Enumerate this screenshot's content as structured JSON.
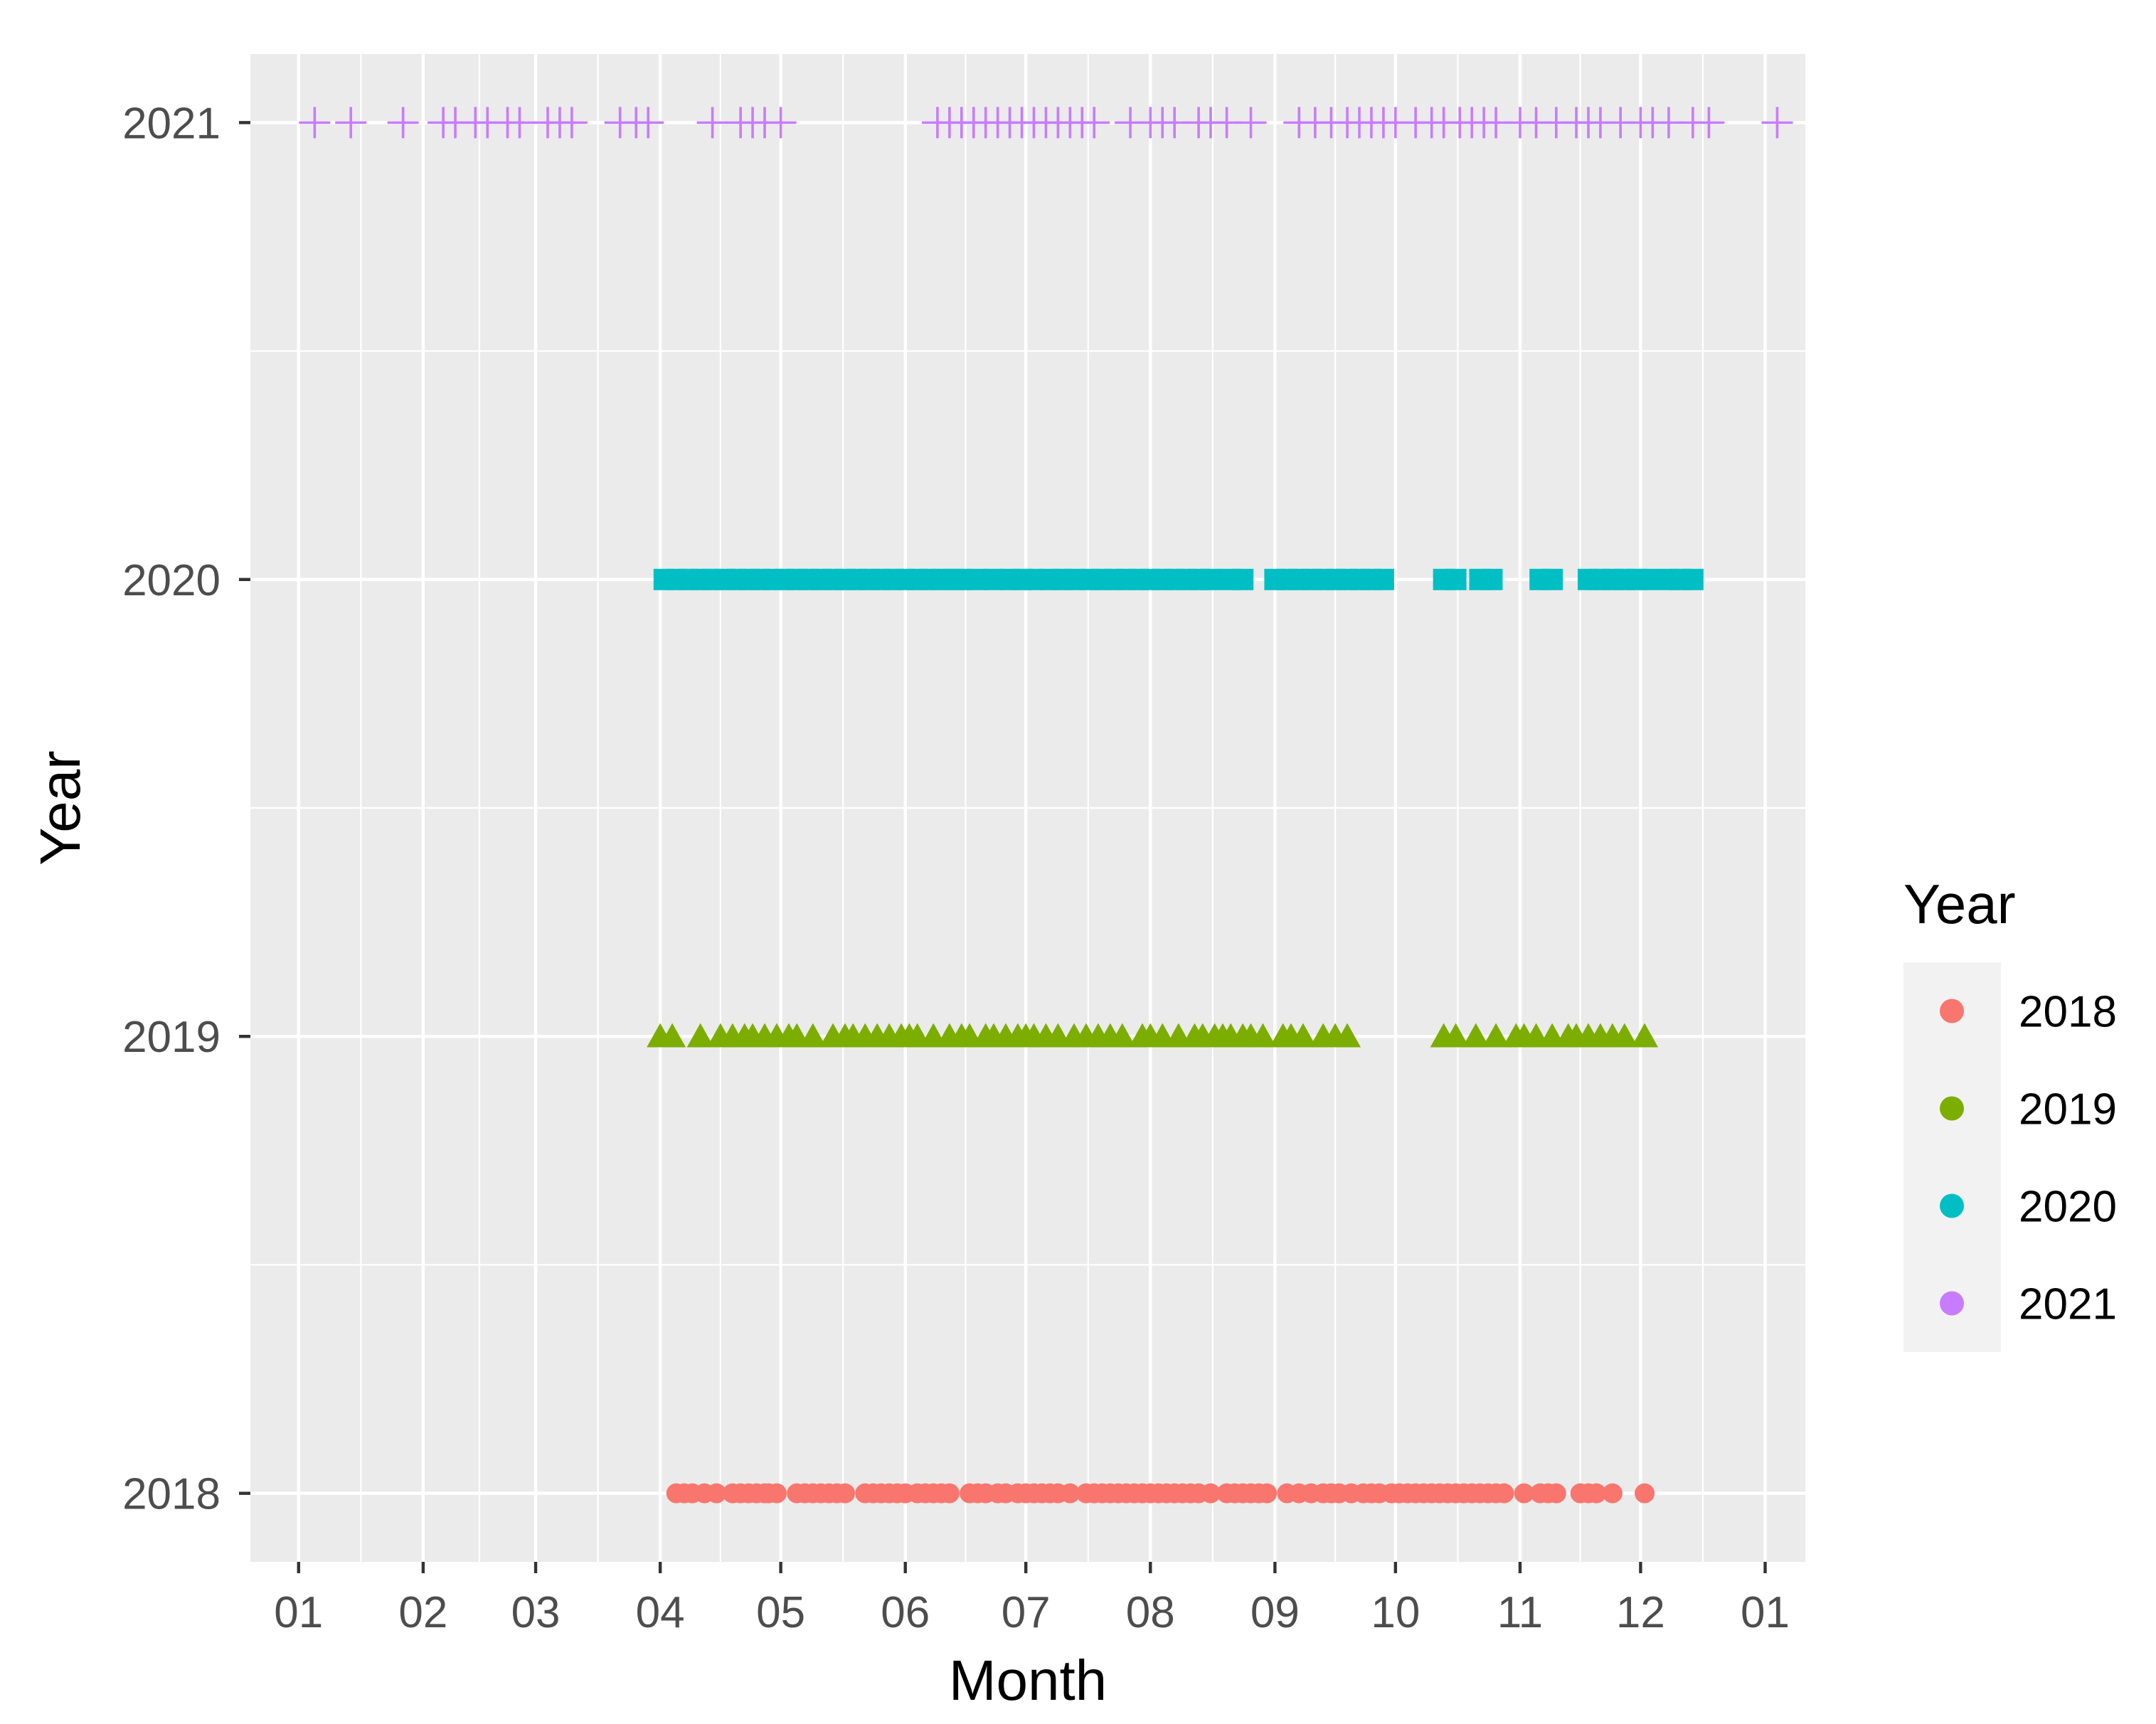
{
  "chart_data": {
    "type": "scatter",
    "title": "",
    "xlabel": "Month",
    "ylabel": "Year",
    "x_unit": "day_of_year",
    "xlim": [
      -11,
      376
    ],
    "ylim": [
      2017.85,
      2021.15
    ],
    "grid": true,
    "x_ticks": [
      {
        "label": "01",
        "day": 1
      },
      {
        "label": "02",
        "day": 32
      },
      {
        "label": "03",
        "day": 60
      },
      {
        "label": "04",
        "day": 91
      },
      {
        "label": "05",
        "day": 121
      },
      {
        "label": "06",
        "day": 152
      },
      {
        "label": "07",
        "day": 182
      },
      {
        "label": "08",
        "day": 213
      },
      {
        "label": "09",
        "day": 244
      },
      {
        "label": "10",
        "day": 274
      },
      {
        "label": "11",
        "day": 305
      },
      {
        "label": "12",
        "day": 335
      },
      {
        "label": "01",
        "day": 366
      }
    ],
    "y_ticks": [
      "2018",
      "2019",
      "2020",
      "2021"
    ],
    "legend": {
      "title": "Year",
      "position": "right",
      "entries": [
        {
          "label": "2018",
          "color": "#F8766D"
        },
        {
          "label": "2019",
          "color": "#7CAE00"
        },
        {
          "label": "2020",
          "color": "#00BFC4"
        },
        {
          "label": "2021",
          "color": "#C77CFF"
        }
      ]
    },
    "series": [
      {
        "name": "2018",
        "y": 2018,
        "shape": "circle",
        "color": "#F8766D",
        "x": [
          95,
          97,
          99,
          102,
          105,
          109,
          111,
          113,
          115,
          117,
          118,
          120,
          125,
          127,
          129,
          131,
          133,
          135,
          137,
          142,
          144,
          146,
          148,
          150,
          152,
          155,
          157,
          159,
          161,
          163,
          168,
          170,
          172,
          175,
          177,
          180,
          182,
          184,
          186,
          188,
          190,
          193,
          197,
          199,
          201,
          203,
          205,
          207,
          209,
          211,
          213,
          215,
          217,
          219,
          221,
          223,
          225,
          228,
          232,
          234,
          236,
          238,
          240,
          242,
          247,
          250,
          253,
          256,
          258,
          260,
          263,
          266,
          268,
          270,
          273,
          275,
          277,
          279,
          281,
          283,
          285,
          287,
          289,
          291,
          293,
          295,
          297,
          299,
          301,
          306,
          310,
          312,
          314,
          320,
          322,
          324,
          328,
          336
        ]
      },
      {
        "name": "2019",
        "y": 2019,
        "shape": "triangle",
        "color": "#7CAE00",
        "x": [
          91,
          94,
          101,
          106,
          109,
          112,
          114,
          117,
          120,
          123,
          125,
          129,
          134,
          137,
          139,
          142,
          145,
          148,
          151,
          153,
          155,
          159,
          163,
          166,
          168,
          172,
          174,
          177,
          180,
          182,
          184,
          187,
          190,
          194,
          197,
          200,
          203,
          206,
          211,
          213,
          216,
          220,
          224,
          226,
          229,
          231,
          233,
          236,
          238,
          241,
          246,
          248,
          251,
          256,
          259,
          262,
          286,
          289,
          294,
          299,
          304,
          306,
          309,
          313,
          317,
          319,
          322,
          325,
          328,
          331,
          336
        ]
      },
      {
        "name": "2020",
        "y": 2020,
        "shape": "square",
        "color": "#00BFC4",
        "x": [
          92,
          95,
          98,
          101,
          104,
          107,
          110,
          113,
          116,
          119,
          122,
          125,
          128,
          131,
          134,
          137,
          140,
          143,
          146,
          149,
          152,
          155,
          158,
          161,
          164,
          166,
          170,
          174,
          178,
          181,
          184,
          188,
          191,
          194,
          198,
          201,
          204,
          207,
          210,
          213,
          216,
          219,
          222,
          225,
          228,
          233,
          236,
          244,
          247,
          250,
          253,
          256,
          259,
          262,
          265,
          268,
          271,
          286,
          289,
          295,
          298,
          310,
          313,
          322,
          325,
          328,
          331,
          334,
          337,
          342,
          345,
          348
        ]
      },
      {
        "name": "2021",
        "y": 2021,
        "shape": "cross",
        "color": "#C77CFF",
        "x": [
          5,
          14,
          27,
          37,
          40,
          45,
          48,
          53,
          56,
          63,
          66,
          69,
          81,
          85,
          88,
          104,
          111,
          114,
          117,
          121,
          160,
          163,
          166,
          169,
          172,
          175,
          178,
          181,
          184,
          187,
          190,
          193,
          196,
          199,
          208,
          213,
          216,
          219,
          225,
          228,
          232,
          238,
          250,
          254,
          258,
          262,
          265,
          268,
          271,
          274,
          279,
          283,
          286,
          290,
          293,
          296,
          299,
          305,
          309,
          314,
          319,
          322,
          325,
          330,
          335,
          338,
          342,
          348,
          352,
          369
        ]
      }
    ]
  }
}
